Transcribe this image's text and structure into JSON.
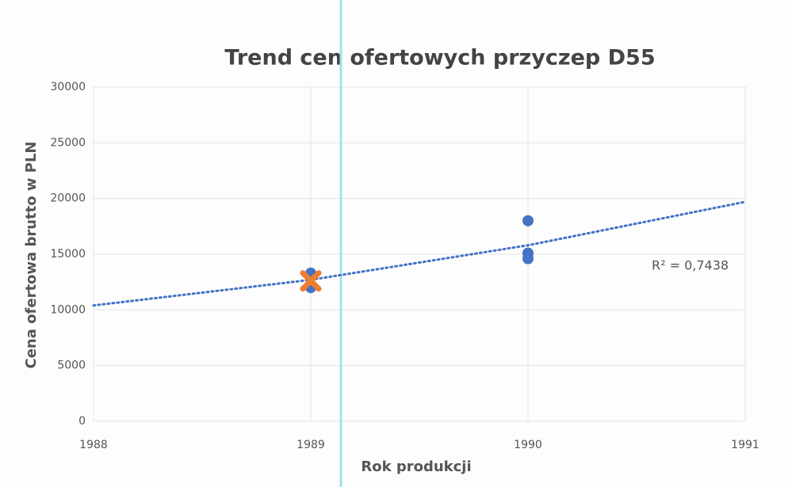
{
  "chart_data": {
    "type": "scatter",
    "title": "Trend cen ofertowych przyczep D55",
    "xlabel": "Rok produkcji",
    "ylabel": "Cena ofertowa brutto w PLN",
    "xlim": [
      1988,
      1991
    ],
    "xticks": [
      1988,
      1989,
      1990,
      1991
    ],
    "ylim": [
      0,
      30000
    ],
    "yticks": [
      0,
      5000,
      10000,
      15000,
      20000,
      25000,
      30000
    ],
    "grid": true,
    "series": [
      {
        "color": "#4472c4",
        "marker": "circle",
        "x": [
          1989,
          1989,
          1990,
          1990,
          1990
        ],
        "values": [
          13300,
          12000,
          18000,
          15100,
          14600
        ]
      },
      {
        "color": "#ed7d31",
        "marker": "x",
        "x": [
          1989
        ],
        "values": [
          12600
        ]
      }
    ],
    "trendline": {
      "color": "#4472c4",
      "x": [
        1988,
        1989,
        1990,
        1991
      ],
      "values": [
        10400,
        12700,
        15800,
        19700
      ]
    },
    "annotation": "R² = 0,7438"
  }
}
